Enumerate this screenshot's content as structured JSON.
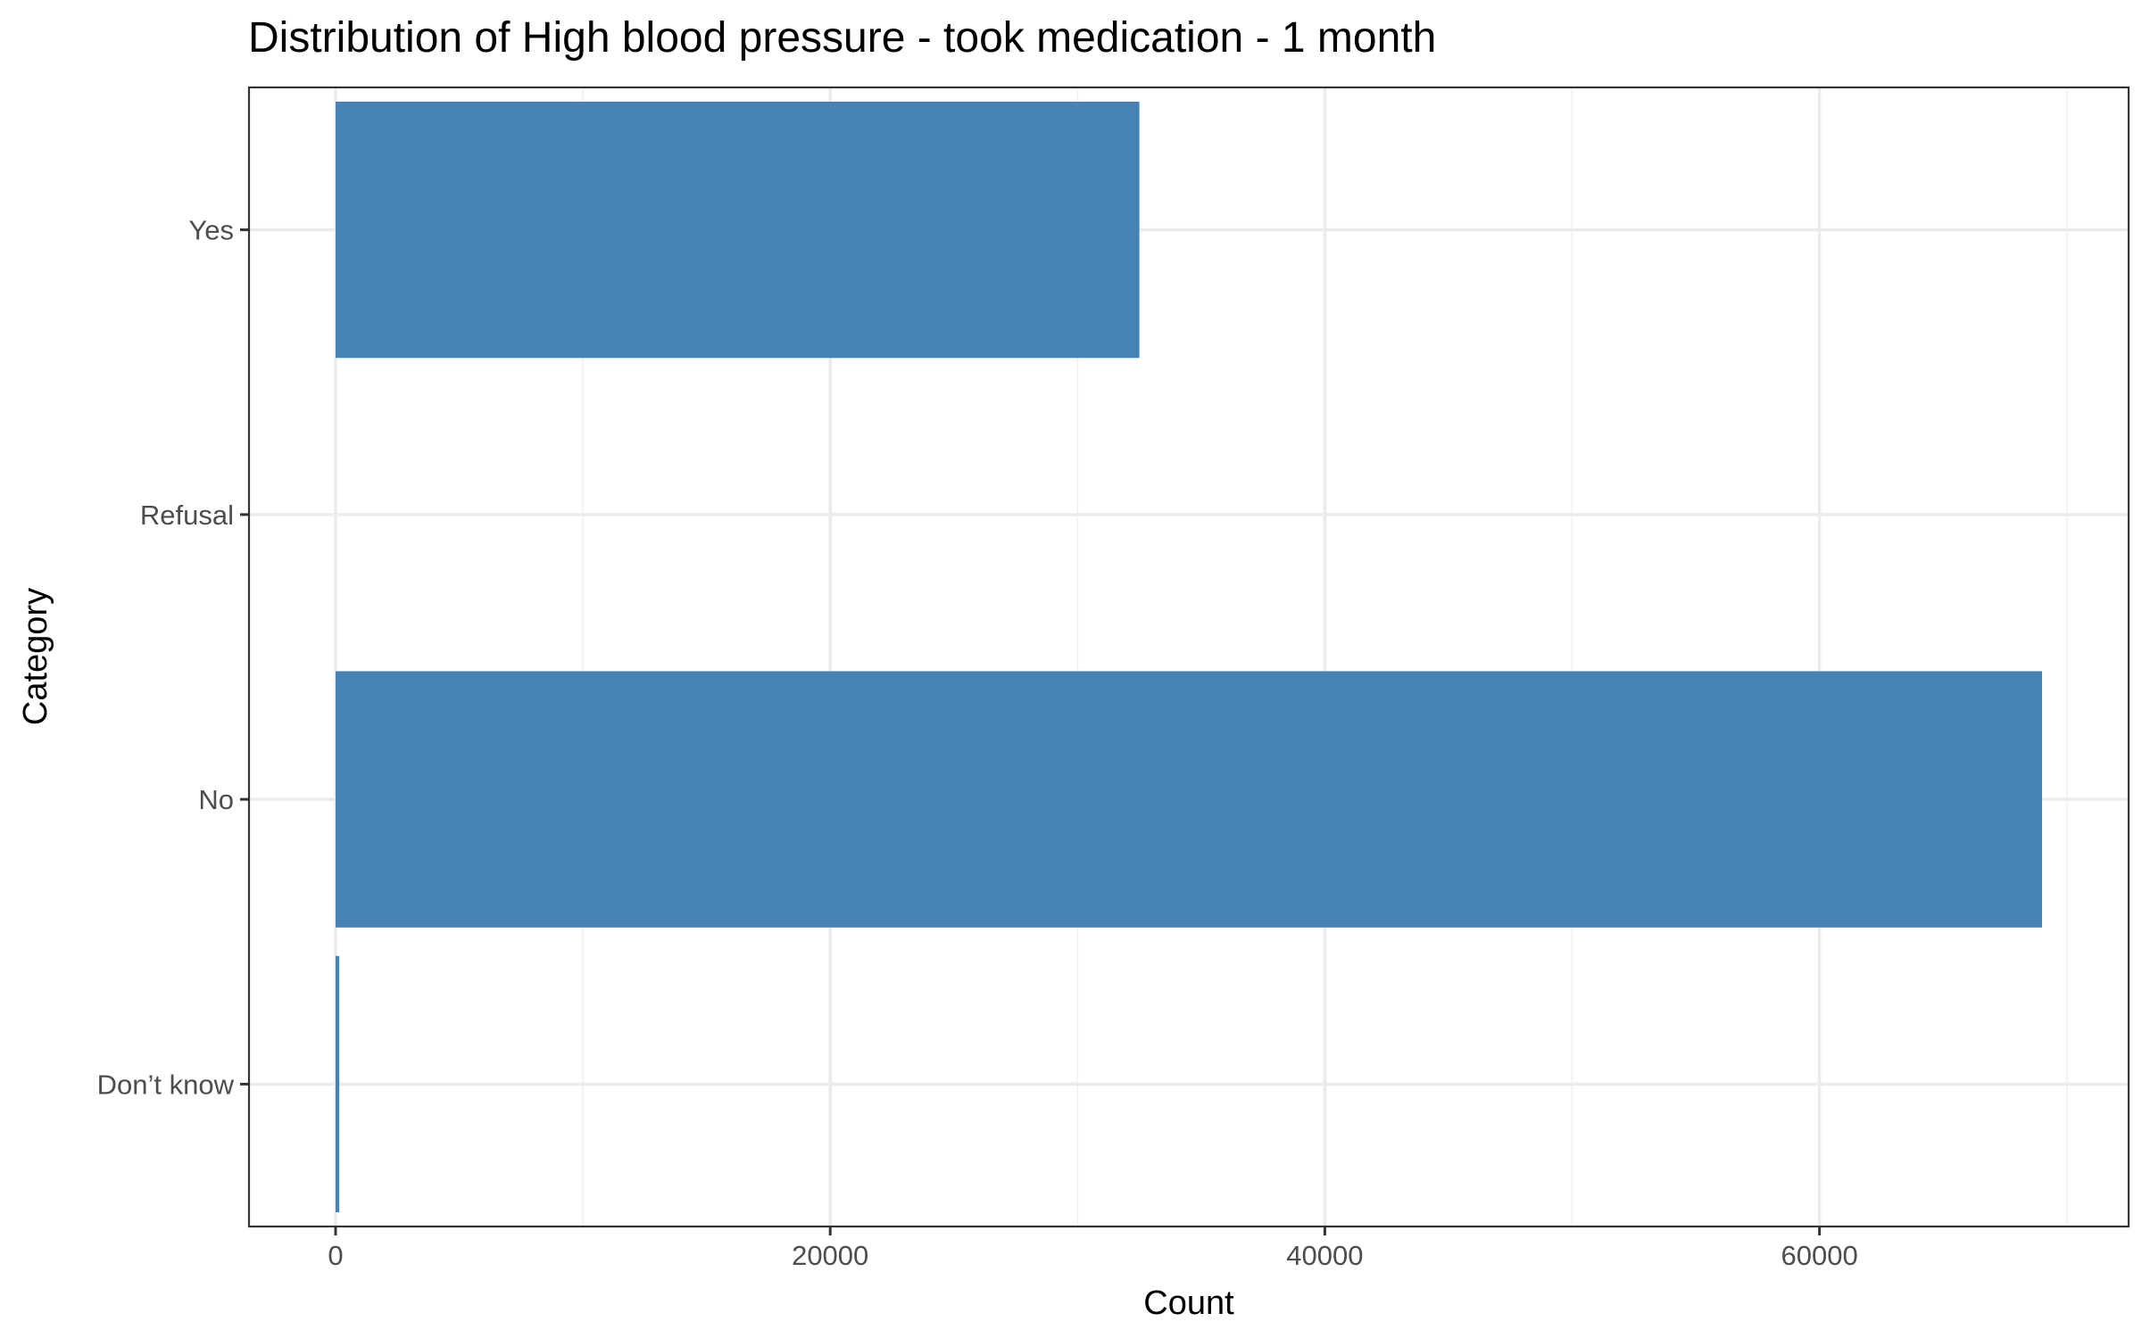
{
  "chart_data": {
    "type": "bar",
    "orientation": "horizontal",
    "title": "Distribution of High blood pressure - took medication - 1 month",
    "xlabel": "Count",
    "ylabel": "Category",
    "categories": [
      "Don’t know",
      "No",
      "Refusal",
      "Yes"
    ],
    "values": [
      150,
      69000,
      0,
      32500
    ],
    "xlim": [
      -3500,
      72500
    ],
    "xticks": [
      0,
      20000,
      40000,
      60000
    ],
    "tick_labels": [
      "0",
      "20000",
      "40000",
      "60000"
    ],
    "bar_color": "#4682b4",
    "grid": true,
    "legend": "none"
  }
}
